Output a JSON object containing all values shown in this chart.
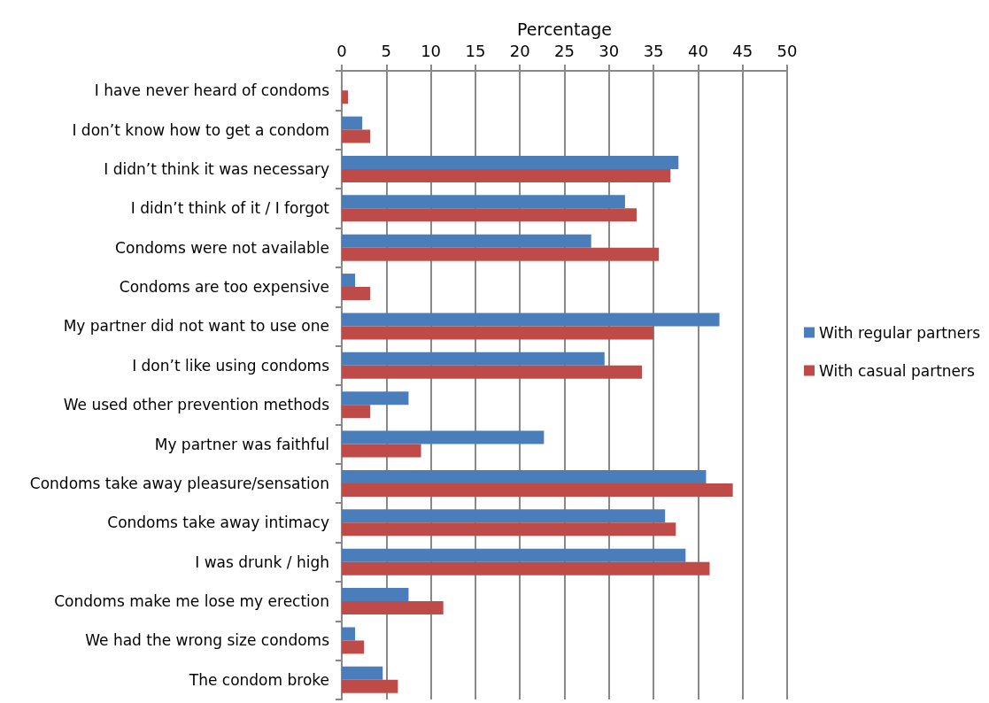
{
  "chart_data": {
    "type": "bar",
    "orientation": "horizontal",
    "xlabel": "Percentage",
    "categories": [
      "I have never heard of condoms",
      "I don’t know how to get a condom",
      "I didn’t think it was necessary",
      "I didn’t think of it / I forgot",
      "Condoms were not available",
      "Condoms are too expensive",
      "My partner did not want to use one",
      "I don’t like using condoms",
      "We used other prevention methods",
      "My partner was faithful",
      "Condoms take away pleasure/sensation",
      "Condoms take away intimacy",
      "I was drunk / high",
      "Condoms make me lose my erection",
      "We had the wrong size condoms",
      "The condom broke"
    ],
    "series": [
      {
        "name": "With regular partners",
        "color": "#4a7ebb",
        "values": [
          0,
          2.3,
          37.8,
          31.8,
          28.0,
          1.5,
          42.4,
          29.5,
          7.5,
          22.7,
          40.9,
          36.3,
          38.6,
          7.5,
          1.5,
          4.6
        ]
      },
      {
        "name": "With casual partners",
        "color": "#be4b48",
        "values": [
          0.7,
          3.2,
          36.9,
          33.1,
          35.6,
          3.2,
          35.0,
          33.7,
          3.2,
          8.9,
          43.9,
          37.5,
          41.3,
          11.4,
          2.5,
          6.3
        ]
      }
    ],
    "xlim": [
      0,
      50
    ],
    "xticks": [
      0,
      5,
      10,
      15,
      20,
      25,
      30,
      35,
      40,
      45,
      50
    ],
    "grid": "x",
    "legend": "right"
  }
}
